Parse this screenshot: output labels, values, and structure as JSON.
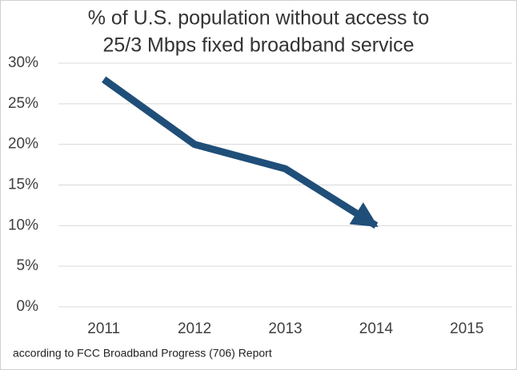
{
  "chart_data": {
    "type": "line",
    "title": [
      "% of U.S. population without access to",
      "25/3 Mbps fixed broadband service"
    ],
    "categories": [
      "2011",
      "2012",
      "2013",
      "2014",
      "2015"
    ],
    "values": [
      28,
      20,
      17,
      10,
      null
    ],
    "color": "#1f4e79",
    "ylim": [
      0,
      30
    ],
    "yticks": [
      {
        "value": 0,
        "label": "0%"
      },
      {
        "value": 5,
        "label": "5%"
      },
      {
        "value": 10,
        "label": "10%"
      },
      {
        "value": 15,
        "label": "15%"
      },
      {
        "value": 20,
        "label": "20%"
      },
      {
        "value": 25,
        "label": "25%"
      },
      {
        "value": 30,
        "label": "30%"
      }
    ],
    "grid": true,
    "footnote": "according to FCC Broadband Progress (706) Report"
  }
}
